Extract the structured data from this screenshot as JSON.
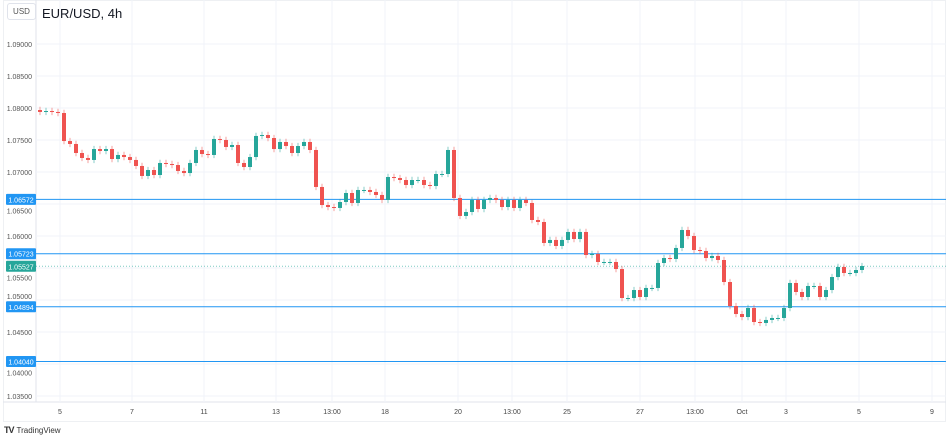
{
  "header": {
    "symbol_title": "EUR/USD, 4h",
    "currency_button": "USD"
  },
  "footer": {
    "brand": "TradingView"
  },
  "colors": {
    "up": "#26a69a",
    "down": "#ef5350",
    "level_line": "#2196f3",
    "last_price": "#26a69a",
    "grid": "#f0f3fa"
  },
  "chart_data": {
    "type": "candlestick",
    "ylim": [
      1.033,
      1.0925
    ],
    "y_ticks": [
      "1.09000",
      "1.08500",
      "1.08000",
      "1.07500",
      "1.07000",
      "1.06500",
      "1.06000",
      "1.05500",
      "1.05000",
      "1.04500",
      "1.04000",
      "1.03500"
    ],
    "x_ticks": [
      "5",
      "7",
      "11",
      "13",
      "13:00",
      "18",
      "20",
      "13:00",
      "25",
      "27",
      "13:00",
      "Oct",
      "3",
      "5",
      "9"
    ],
    "levels": [
      "1.06572",
      "1.05723",
      "1.04894",
      "1.04040"
    ],
    "last_price": "1.05527",
    "first_open": 1.07969,
    "closes": [
      1.07938,
      1.07953,
      1.07938,
      1.07922,
      1.07484,
      1.07438,
      1.07297,
      1.07219,
      1.07188,
      1.07359,
      1.07328,
      1.07359,
      1.07203,
      1.07266,
      1.07234,
      1.07188,
      1.07094,
      1.06938,
      1.07031,
      1.06953,
      1.07141,
      1.07125,
      1.07109,
      1.07016,
      1.06984,
      1.07141,
      1.07344,
      1.07281,
      1.07266,
      1.07516,
      1.075,
      1.07391,
      1.07422,
      1.07141,
      1.07078,
      1.07234,
      1.07563,
      1.07578,
      1.07531,
      1.07359,
      1.07469,
      1.07406,
      1.07297,
      1.07406,
      1.07469,
      1.07344,
      1.06766,
      1.06484,
      1.06453,
      1.06438,
      1.06531,
      1.06672,
      1.06516,
      1.06719,
      1.06719,
      1.06688,
      1.06641,
      1.06563,
      1.06922,
      1.06906,
      1.06875,
      1.06797,
      1.06875,
      1.06875,
      1.06797,
      1.06781,
      1.06969,
      1.06969,
      1.07344,
      1.06594,
      1.06313,
      1.06375,
      1.06563,
      1.06422,
      1.06563,
      1.06594,
      1.06563,
      1.06453,
      1.06563,
      1.06438,
      1.06563,
      1.06516,
      1.0625,
      1.06219,
      1.05891,
      1.05938,
      1.05844,
      1.05938,
      1.06063,
      1.05953,
      1.06063,
      1.05703,
      1.05719,
      1.05594,
      1.05594,
      1.05594,
      1.05484,
      1.05031,
      1.05031,
      1.05156,
      1.05047,
      1.05188,
      1.05188,
      1.05578,
      1.05656,
      1.05641,
      1.05813,
      1.06094,
      1.06,
      1.05781,
      1.05766,
      1.05656,
      1.05688,
      1.05625,
      1.05281,
      1.04906,
      1.04781,
      1.04734,
      1.04875,
      1.04656,
      1.04641,
      1.04688,
      1.04719,
      1.04719,
      1.04875,
      1.05266,
      1.05125,
      1.05047,
      1.05219,
      1.05219,
      1.05047,
      1.05156,
      1.05359,
      1.05516,
      1.05422,
      1.05422,
      1.05469,
      1.05531
    ]
  }
}
